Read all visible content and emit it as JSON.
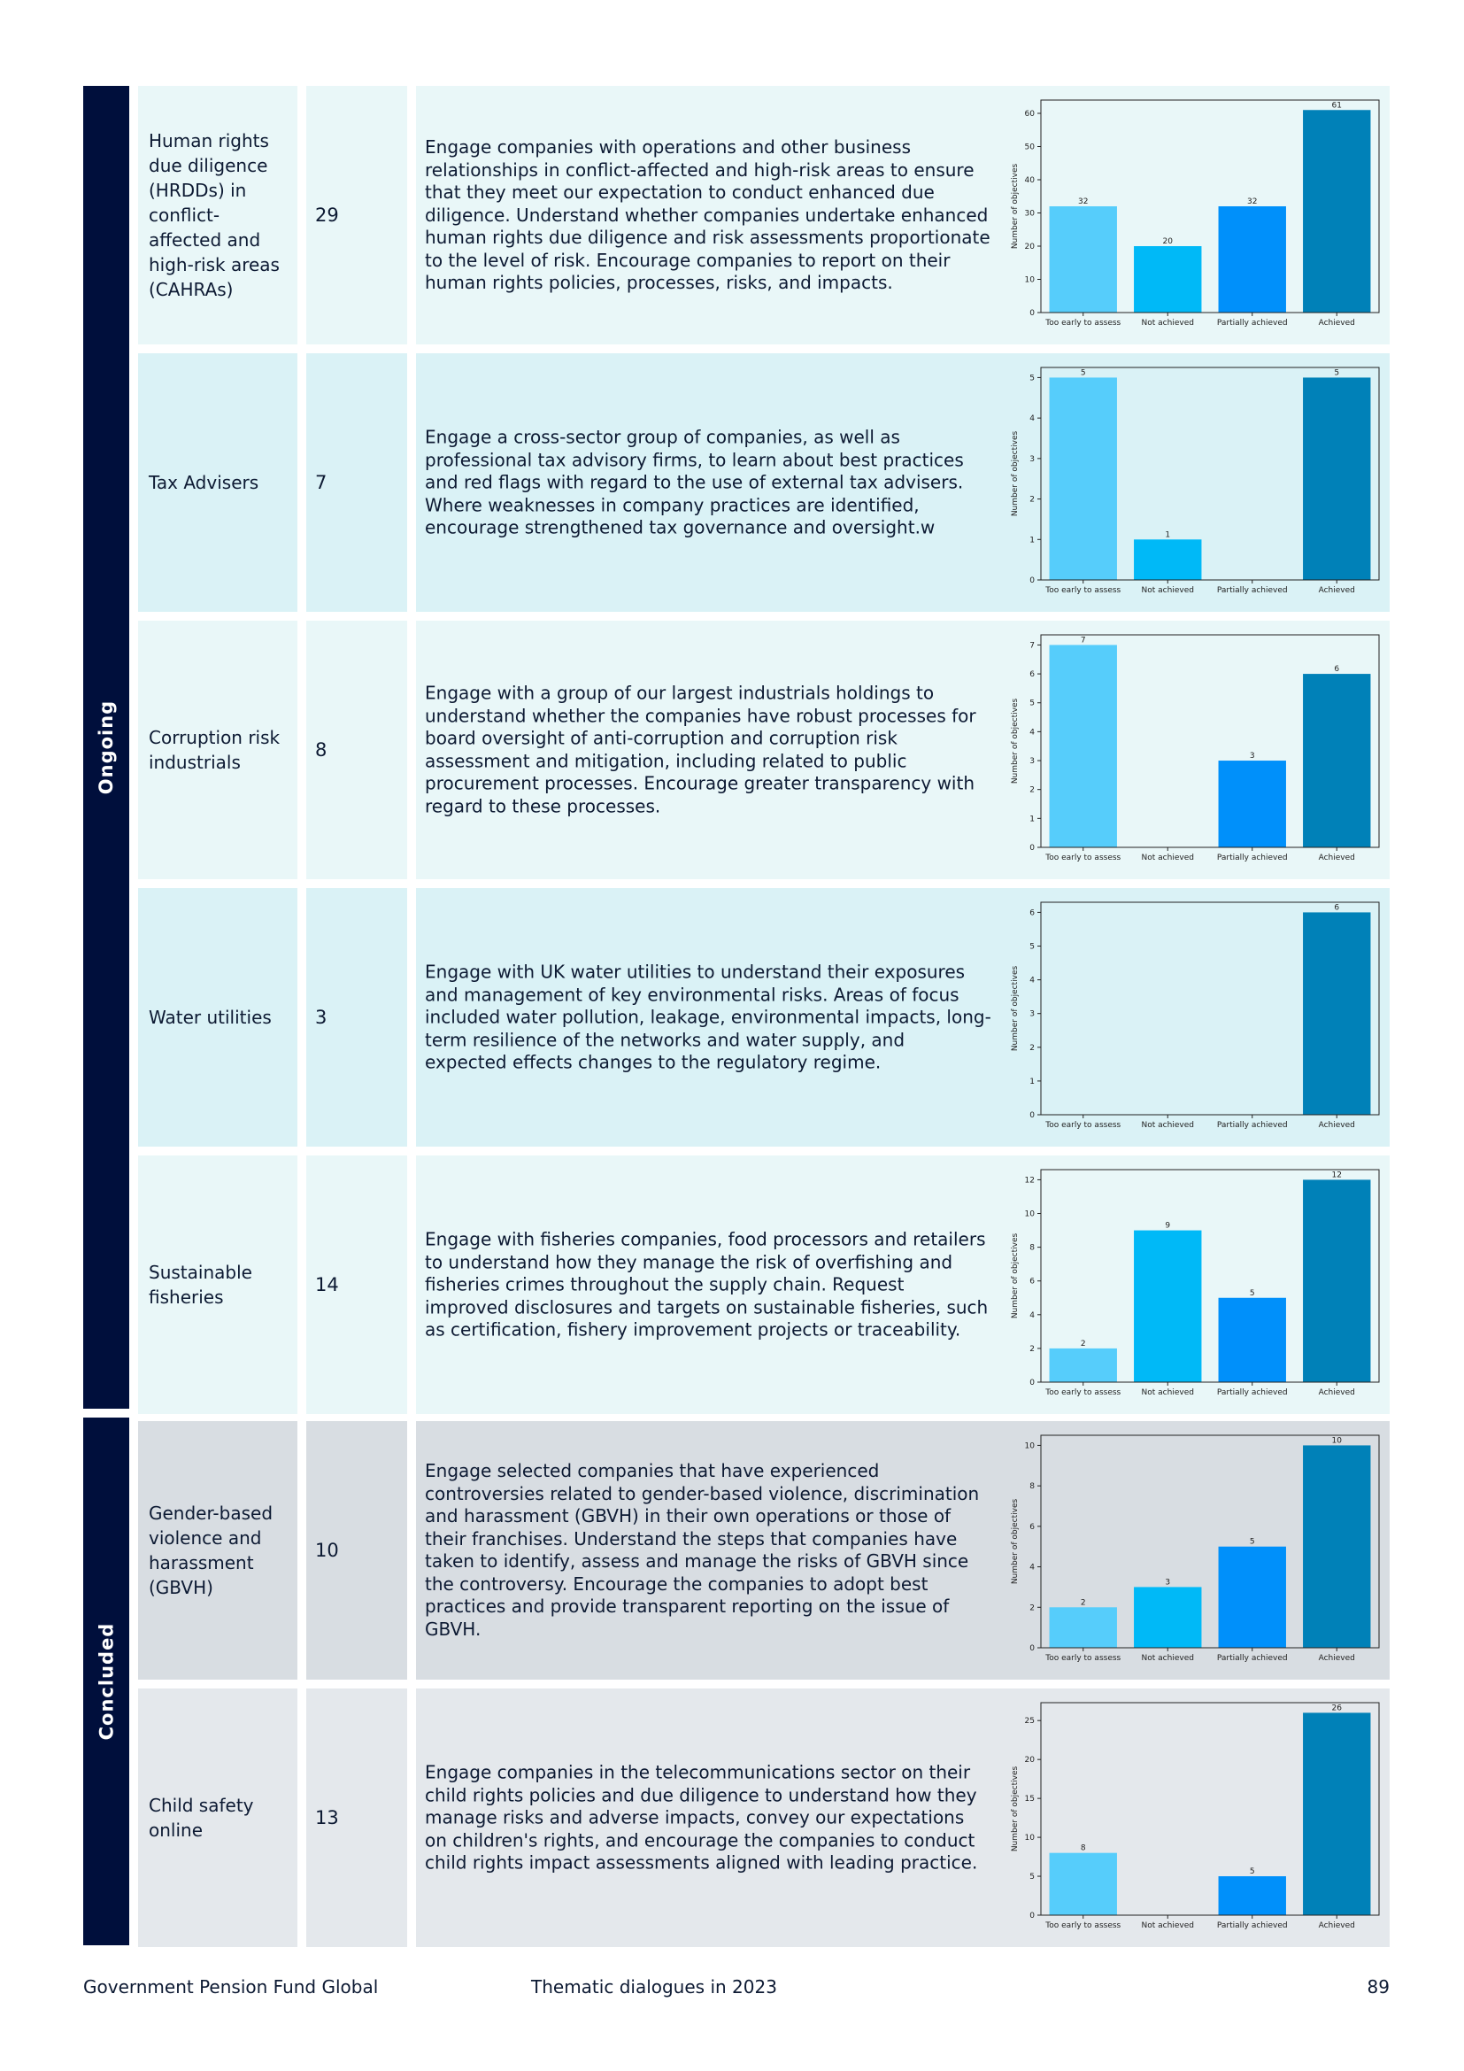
{
  "sections": {
    "ongoing": "Ongoing",
    "concluded": "Concluded"
  },
  "rows": [
    {
      "topic": "Human rights due diligence (HRDDs) in conflict-affected and high-risk areas (CAHRAs)",
      "count": "29",
      "description": "Engage companies with operations and other business relationships in conflict-affected and high-risk areas to ensure that they meet our expectation to conduct enhanced due diligence. Understand whether companies undertake enhanced human rights due diligence and risk assessments proportionate to the level of risk. Encourage companies to report on their human rights policies, processes, risks, and impacts."
    },
    {
      "topic": "Tax Advisers",
      "count": "7",
      "description": "Engage a cross-sector group of companies, as well as professional tax advisory firms, to learn about best practices and red flags with regard to the use of external tax advisers. Where weaknesses in company practices are identified, encourage strengthened tax governance and oversight.w"
    },
    {
      "topic": "Corruption risk industrials",
      "count": "8",
      "description": "Engage with a group of our largest industrials holdings to understand whether the companies have robust processes for board oversight of anti-corruption and corruption risk assessment and mitigation, including related to public procurement processes. Encourage greater transparency with regard to these processes."
    },
    {
      "topic": "Water utilities",
      "count": "3",
      "description": "Engage with UK water utilities to understand their exposures and management of key environmental risks. Areas of focus included water pollution, leakage, environmental impacts, long-term resilience of the networks and water supply, and expected effects changes to the regulatory regime."
    },
    {
      "topic": "Sustainable fisheries",
      "count": "14",
      "description": "Engage with fisheries companies, food processors and retailers to understand how they manage the risk of overfishing and fisheries crimes throughout the supply chain. Request improved disclosures and targets on sustainable fisheries, such as certification, fishery improvement projects or traceability."
    },
    {
      "topic": "Gender-based violence and harassment (GBVH)",
      "count": "10",
      "description": "Engage selected companies that have experienced controversies related to gender-based violence, discrimination and harassment (GBVH) in their own operations or those of their franchises. Understand the steps that companies have taken to identify, assess and manage the risks of GBVH since the controversy. Encourage the companies to adopt best practices and provide transparent reporting on the issue of GBVH."
    },
    {
      "topic": "Child safety online",
      "count": "13",
      "description": "Engage companies in the telecommunications sector on their child rights policies and due diligence to understand how they manage risks and adverse impacts, convey our expectations on children's rights, and encourage the companies to conduct child rights impact assessments aligned with leading practice."
    }
  ],
  "chart_data": [
    {
      "type": "bar",
      "categories": [
        "Too early to assess",
        "Not achieved",
        "Partially achieved",
        "Achieved"
      ],
      "values": [
        32,
        20,
        32,
        61
      ],
      "ylabel": "Number of objectives",
      "ylim": [
        0,
        64
      ],
      "yticks": [
        0,
        10,
        20,
        30,
        40,
        50,
        60
      ],
      "colors": [
        "#56cdfb",
        "#00b9f7",
        "#0090fa",
        "#0081b8"
      ],
      "grid": false
    },
    {
      "type": "bar",
      "categories": [
        "Too early to assess",
        "Not achieved",
        "Partially achieved",
        "Achieved"
      ],
      "values": [
        5,
        1,
        0,
        5
      ],
      "ylabel": "Number of objectives",
      "ylim": [
        0,
        5.25
      ],
      "yticks": [
        0,
        1,
        2,
        3,
        4,
        5
      ],
      "colors": [
        "#56cdfb",
        "#00b9f7",
        "#0090fa",
        "#0081b8"
      ],
      "grid": false
    },
    {
      "type": "bar",
      "categories": [
        "Too early to assess",
        "Not achieved",
        "Partially achieved",
        "Achieved"
      ],
      "values": [
        7,
        0,
        3,
        6
      ],
      "ylabel": "Number of objectives",
      "ylim": [
        0,
        7.35
      ],
      "yticks": [
        0,
        1,
        2,
        3,
        4,
        5,
        6,
        7
      ],
      "colors": [
        "#56cdfb",
        "#00b9f7",
        "#0090fa",
        "#0081b8"
      ],
      "grid": false
    },
    {
      "type": "bar",
      "categories": [
        "Too early to assess",
        "Not achieved",
        "Partially achieved",
        "Achieved"
      ],
      "values": [
        0,
        0,
        0,
        6
      ],
      "ylabel": "Number of objectives",
      "ylim": [
        0,
        6.3
      ],
      "yticks": [
        0,
        1,
        2,
        3,
        4,
        5,
        6
      ],
      "colors": [
        "#56cdfb",
        "#00b9f7",
        "#0090fa",
        "#0081b8"
      ],
      "grid": false
    },
    {
      "type": "bar",
      "categories": [
        "Too early to assess",
        "Not achieved",
        "Partially achieved",
        "Achieved"
      ],
      "values": [
        2,
        9,
        5,
        12
      ],
      "ylabel": "Number of objectives",
      "ylim": [
        0,
        12.6
      ],
      "yticks": [
        0,
        2,
        4,
        6,
        8,
        10,
        12
      ],
      "colors": [
        "#56cdfb",
        "#00b9f7",
        "#0090fa",
        "#0081b8"
      ],
      "grid": false
    },
    {
      "type": "bar",
      "categories": [
        "Too early to assess",
        "Not achieved",
        "Partially achieved",
        "Achieved"
      ],
      "values": [
        2,
        3,
        5,
        10
      ],
      "ylabel": "Number of objectives",
      "ylim": [
        0,
        10.5
      ],
      "yticks": [
        0,
        2,
        4,
        6,
        8,
        10
      ],
      "colors": [
        "#56cdfb",
        "#00b9f7",
        "#0090fa",
        "#0081b8"
      ],
      "grid": false
    },
    {
      "type": "bar",
      "categories": [
        "Too early to assess",
        "Not achieved",
        "Partially achieved",
        "Achieved"
      ],
      "values": [
        8,
        0,
        5,
        26
      ],
      "ylabel": "Number of objectives",
      "ylim": [
        0,
        27.3
      ],
      "yticks": [
        0,
        5,
        10,
        15,
        20,
        25
      ],
      "colors": [
        "#56cdfb",
        "#00b9f7",
        "#0090fa",
        "#0081b8"
      ],
      "grid": false
    }
  ],
  "footer": {
    "left": "Government Pension Fund Global",
    "center": "Thematic dialogues in 2023",
    "page": "89"
  }
}
